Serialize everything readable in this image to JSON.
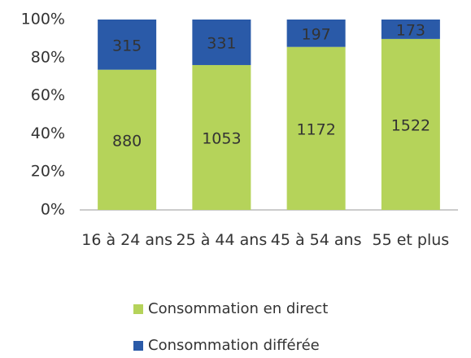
{
  "chart_data": {
    "type": "bar",
    "stack": "percent",
    "categories": [
      "16 à 24 ans",
      "25 à 44 ans",
      "45 à 54 ans",
      "55 et plus"
    ],
    "series": [
      {
        "name": "Consommation en direct",
        "color": "#b5d35a",
        "values": [
          880,
          1053,
          1172,
          1522
        ]
      },
      {
        "name": "Consommation différée",
        "color": "#2a5aa8",
        "values": [
          315,
          331,
          197,
          173
        ]
      }
    ],
    "ylim": [
      0,
      100
    ],
    "yticks": [
      {
        "value": 0,
        "label": "0%"
      },
      {
        "value": 20,
        "label": "20%"
      },
      {
        "value": 40,
        "label": "40%"
      },
      {
        "value": 60,
        "label": "60%"
      },
      {
        "value": 80,
        "label": "80%"
      },
      {
        "value": 100,
        "label": "100%"
      }
    ]
  }
}
